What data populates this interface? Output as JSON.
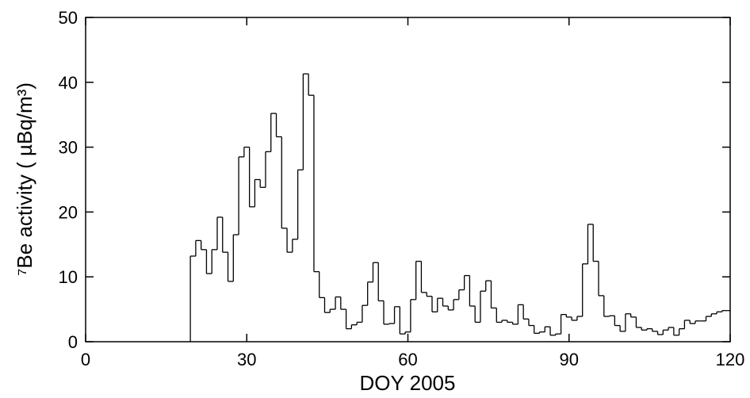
{
  "chart_data": {
    "type": "step",
    "x_label": "DOY 2005",
    "y_label": "⁷Be activity ( µBq/m³)",
    "color": "#000000",
    "xlim": [
      0,
      120
    ],
    "xticks": [
      0,
      30,
      60,
      90,
      120
    ],
    "ylim": [
      0,
      50
    ],
    "yticks": [
      0,
      10,
      20,
      30,
      40,
      50
    ],
    "x": [
      20,
      21,
      22,
      23,
      24,
      25,
      26,
      27,
      28,
      29,
      30,
      31,
      32,
      33,
      34,
      35,
      36,
      37,
      38,
      39,
      40,
      41,
      42,
      43,
      44,
      45,
      46,
      47,
      48,
      49,
      50,
      51,
      52,
      53,
      54,
      55,
      56,
      57,
      58,
      59,
      60,
      61,
      62,
      63,
      64,
      65,
      66,
      67,
      68,
      69,
      70,
      71,
      72,
      73,
      74,
      75,
      76,
      77,
      78,
      79,
      80,
      81,
      82,
      83,
      84,
      85,
      86,
      87,
      88,
      89,
      90,
      91,
      92,
      93,
      94,
      95,
      96,
      97,
      98,
      99,
      100,
      101,
      102,
      103,
      104,
      105,
      106,
      107,
      108,
      109,
      110,
      111,
      112,
      113,
      114,
      115,
      116,
      117,
      118,
      119,
      120
    ],
    "values": [
      13.2,
      15.6,
      14.2,
      10.5,
      14.2,
      19.2,
      13.8,
      9.3,
      16.5,
      28.5,
      30,
      20.8,
      25,
      23.8,
      29.3,
      35.2,
      31.6,
      17.5,
      13.8,
      15.8,
      26.5,
      41.3,
      38,
      10.8,
      6.8,
      4.5,
      5,
      6.9,
      5,
      2,
      2.6,
      3,
      5.6,
      9.2,
      12.2,
      6.3,
      2.7,
      2.8,
      5.4,
      1.2,
      1.5,
      6.5,
      12.4,
      7.6,
      7,
      4.6,
      6.7,
      5.5,
      4.9,
      6.5,
      8,
      10.2,
      5.5,
      3,
      7.8,
      9.4,
      5.2,
      3,
      3.3,
      3,
      2.7,
      5.7,
      3.5,
      2.5,
      1.3,
      1.5,
      2.3,
      1,
      1.2,
      4.2,
      3.8,
      3.3,
      3.9,
      12,
      18.1,
      12.4,
      7.1,
      3.9,
      4,
      2.5,
      1.6,
      4.3,
      3.8,
      2.2,
      1.8,
      2,
      1.6,
      1.1,
      1.8,
      2.2,
      1,
      2,
      3.3,
      2.8,
      3.2,
      3.2,
      3.9,
      4.3,
      4.6,
      4.8,
      4.8
    ]
  }
}
